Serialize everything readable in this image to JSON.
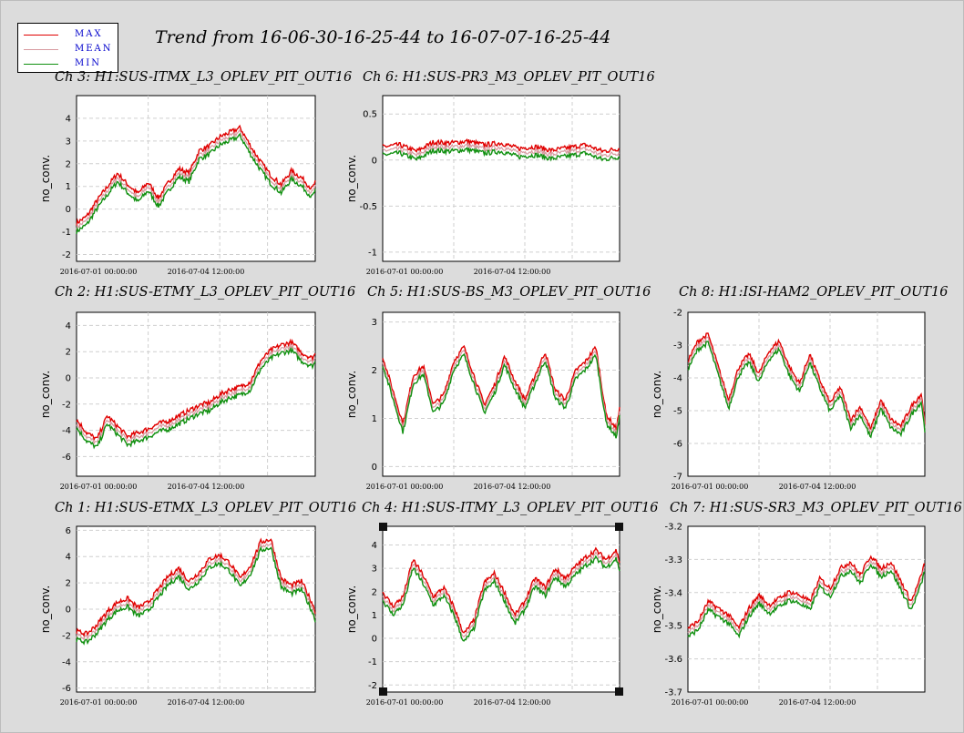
{
  "legend": {
    "items": [
      {
        "label": "MAX",
        "color": "#e00000"
      },
      {
        "label": "MEAN",
        "color": "#d89aa0"
      },
      {
        "label": "MIN",
        "color": "#109010"
      }
    ]
  },
  "header": {
    "title": "Trend from 16-06-30-16-25-44 to 16-07-07-16-25-44"
  },
  "chart_data": [
    {
      "channel": "Ch 3",
      "title": "Ch 3: H1:SUS-ITMX_L3_OPLEV_PIT_OUT16",
      "type": "line",
      "ylabel": "no_conv.",
      "ylim": [
        -2.3,
        5
      ],
      "yticks": [
        -2,
        -1,
        0,
        1,
        2,
        3,
        4
      ],
      "xticks": [
        "2016-07-01 00:00:00",
        "2016-07-04 12:00:00"
      ],
      "xlim": [
        0,
        7
      ],
      "grid": true,
      "series": [
        {
          "name": "MEAN",
          "x": [
            0,
            0.3,
            0.6,
            0.9,
            1.2,
            1.5,
            1.8,
            2.1,
            2.4,
            2.7,
            3.0,
            3.3,
            3.6,
            3.9,
            4.2,
            4.5,
            4.8,
            5.1,
            5.4,
            5.7,
            6.0,
            6.3,
            6.6,
            6.9,
            7.0
          ],
          "values": [
            -0.8,
            -0.5,
            0.2,
            0.8,
            1.4,
            0.9,
            0.5,
            1.0,
            0.3,
            1.0,
            1.6,
            1.4,
            2.4,
            2.6,
            3.0,
            3.2,
            3.4,
            2.6,
            1.9,
            1.3,
            0.9,
            1.5,
            1.2,
            0.7,
            1.0
          ]
        }
      ]
    },
    {
      "channel": "Ch 6",
      "title": "Ch 6: H1:SUS-PR3_M3_OPLEV_PIT_OUT16",
      "type": "line",
      "ylabel": "no_conv.",
      "ylim": [
        -1.1,
        0.7
      ],
      "yticks": [
        0.5,
        0,
        -0.5,
        -1
      ],
      "xticks": [
        "2016-07-01 00:00:00",
        "2016-07-04 12:00:00"
      ],
      "xlim": [
        0,
        7
      ],
      "grid": true,
      "series": [
        {
          "name": "MEAN",
          "x": [
            0,
            0.5,
            1.0,
            1.5,
            2.0,
            2.5,
            3.0,
            3.5,
            4.0,
            4.5,
            5.0,
            5.5,
            6.0,
            6.5,
            7.0
          ],
          "values": [
            0.1,
            0.12,
            0.05,
            0.15,
            0.14,
            0.16,
            0.12,
            0.14,
            0.08,
            0.1,
            0.06,
            0.09,
            0.12,
            0.05,
            0.08
          ]
        }
      ]
    },
    {
      "channel": "Ch 2",
      "title": "Ch 2: H1:SUS-ETMY_L3_OPLEV_PIT_OUT16",
      "type": "line",
      "ylabel": "no_conv.",
      "ylim": [
        -7.5,
        5
      ],
      "yticks": [
        4,
        2,
        0,
        -2,
        -4,
        -6
      ],
      "xticks": [
        "2016-07-01 00:00:00",
        "2016-07-04 12:00:00"
      ],
      "xlim": [
        0,
        7
      ],
      "grid": true,
      "series": [
        {
          "name": "MEAN",
          "x": [
            0,
            0.3,
            0.6,
            0.9,
            1.2,
            1.5,
            1.8,
            2.1,
            2.4,
            2.7,
            3.0,
            3.3,
            3.6,
            3.9,
            4.2,
            4.5,
            4.8,
            5.1,
            5.4,
            5.7,
            6.0,
            6.3,
            6.6,
            6.9,
            7.0
          ],
          "values": [
            -3.5,
            -4.5,
            -5.0,
            -3.2,
            -4.0,
            -4.8,
            -4.5,
            -4.2,
            -3.8,
            -3.6,
            -3.2,
            -2.8,
            -2.4,
            -2.2,
            -1.6,
            -1.2,
            -1.0,
            -0.6,
            1.0,
            1.8,
            2.2,
            2.4,
            1.6,
            1.2,
            1.5
          ]
        }
      ]
    },
    {
      "channel": "Ch 5",
      "title": "Ch 5: H1:SUS-BS_M3_OPLEV_PIT_OUT16",
      "type": "line",
      "ylabel": "no_conv.",
      "ylim": [
        -0.2,
        3.2
      ],
      "yticks": [
        0,
        1,
        2,
        3
      ],
      "xticks": [
        "2016-07-01 00:00:00",
        "2016-07-04 12:00:00"
      ],
      "xlim": [
        0,
        7
      ],
      "grid": true,
      "series": [
        {
          "name": "MEAN",
          "x": [
            0,
            0.3,
            0.6,
            0.9,
            1.2,
            1.5,
            1.8,
            2.1,
            2.4,
            2.7,
            3.0,
            3.3,
            3.6,
            3.9,
            4.2,
            4.5,
            4.8,
            5.1,
            5.4,
            5.7,
            6.0,
            6.3,
            6.6,
            6.9,
            7.0
          ],
          "values": [
            2.2,
            1.5,
            0.8,
            1.8,
            2.0,
            1.2,
            1.4,
            2.1,
            2.4,
            1.8,
            1.2,
            1.6,
            2.2,
            1.7,
            1.3,
            1.8,
            2.3,
            1.5,
            1.3,
            1.9,
            2.1,
            2.4,
            1.0,
            0.7,
            1.1
          ]
        }
      ]
    },
    {
      "channel": "Ch 8",
      "title": "Ch 8: H1:ISI-HAM2_OPLEV_PIT_OUT16",
      "type": "line",
      "ylabel": "no_conv.",
      "ylim": [
        -7,
        -2
      ],
      "yticks": [
        -2,
        -3,
        -4,
        -5,
        -6,
        -7
      ],
      "xticks": [
        "2016-07-01 00:00:00",
        "2016-07-04 12:00:00"
      ],
      "xlim": [
        0,
        7
      ],
      "grid": true,
      "series": [
        {
          "name": "MEAN",
          "x": [
            0,
            0.3,
            0.6,
            0.9,
            1.2,
            1.5,
            1.8,
            2.1,
            2.4,
            2.7,
            3.0,
            3.3,
            3.6,
            3.9,
            4.2,
            4.5,
            4.8,
            5.1,
            5.4,
            5.7,
            6.0,
            6.3,
            6.6,
            6.9,
            7.0
          ],
          "values": [
            -3.6,
            -3.0,
            -2.8,
            -3.8,
            -4.8,
            -3.8,
            -3.4,
            -4.0,
            -3.3,
            -3.0,
            -3.8,
            -4.3,
            -3.4,
            -4.2,
            -4.9,
            -4.4,
            -5.4,
            -5.0,
            -5.7,
            -4.8,
            -5.4,
            -5.6,
            -5.0,
            -4.6,
            -5.5
          ]
        }
      ]
    },
    {
      "channel": "Ch 1",
      "title": "Ch 1: H1:SUS-ETMX_L3_OPLEV_PIT_OUT16",
      "type": "line",
      "ylabel": "no_conv.",
      "ylim": [
        -6.3,
        6.3
      ],
      "yticks": [
        6,
        4,
        2,
        0,
        -2,
        -4,
        -6
      ],
      "xticks": [
        "2016-07-01 00:00:00",
        "2016-07-04 12:00:00"
      ],
      "xlim": [
        0,
        7
      ],
      "grid": true,
      "series": [
        {
          "name": "MEAN",
          "x": [
            0,
            0.3,
            0.6,
            0.9,
            1.2,
            1.5,
            1.8,
            2.1,
            2.4,
            2.7,
            3.0,
            3.3,
            3.6,
            3.9,
            4.2,
            4.5,
            4.8,
            5.1,
            5.4,
            5.7,
            6.0,
            6.3,
            6.6,
            6.9,
            7.0
          ],
          "values": [
            -2.0,
            -2.2,
            -1.5,
            -0.5,
            0.2,
            0.5,
            -0.2,
            0.2,
            1.2,
            2.2,
            2.8,
            1.8,
            2.5,
            3.5,
            3.8,
            3.2,
            2.0,
            3.0,
            4.8,
            5.0,
            2.0,
            1.5,
            1.8,
            0.2,
            -0.5
          ]
        }
      ]
    },
    {
      "channel": "Ch 4",
      "title": "Ch 4: H1:SUS-ITMY_L3_OPLEV_PIT_OUT16",
      "type": "line",
      "ylabel": "no_conv.",
      "ylim": [
        -2.3,
        4.8
      ],
      "yticks": [
        4,
        3,
        2,
        1,
        0,
        -1,
        -2
      ],
      "xticks": [
        "2016-07-01 00:00:00",
        "2016-07-04 12:00:00"
      ],
      "xlim": [
        0,
        7
      ],
      "grid": true,
      "series": [
        {
          "name": "MEAN",
          "x": [
            0,
            0.3,
            0.6,
            0.9,
            1.2,
            1.5,
            1.8,
            2.1,
            2.4,
            2.7,
            3.0,
            3.3,
            3.6,
            3.9,
            4.2,
            4.5,
            4.8,
            5.1,
            5.4,
            5.7,
            6.0,
            6.3,
            6.6,
            6.9,
            7.0
          ],
          "values": [
            1.8,
            1.2,
            1.6,
            3.2,
            2.5,
            1.6,
            2.0,
            1.2,
            0.0,
            0.6,
            2.2,
            2.6,
            1.8,
            0.8,
            1.4,
            2.4,
            2.0,
            2.8,
            2.4,
            2.9,
            3.3,
            3.6,
            3.2,
            3.6,
            3.1
          ]
        }
      ]
    },
    {
      "channel": "Ch 7",
      "title": "Ch 7: H1:SUS-SR3_M3_OPLEV_PIT_OUT16",
      "type": "line",
      "ylabel": "no_conv.",
      "ylim": [
        -3.7,
        -3.2
      ],
      "yticks": [
        -3.2,
        -3.3,
        -3.4,
        -3.5,
        -3.6,
        -3.7
      ],
      "xticks": [
        "2016-07-01 00:00:00",
        "2016-07-04 12:00:00"
      ],
      "xlim": [
        0,
        7
      ],
      "grid": true,
      "series": [
        {
          "name": "MEAN",
          "x": [
            0,
            0.3,
            0.6,
            0.9,
            1.2,
            1.5,
            1.8,
            2.1,
            2.4,
            2.7,
            3.0,
            3.3,
            3.6,
            3.9,
            4.2,
            4.5,
            4.8,
            5.1,
            5.4,
            5.7,
            6.0,
            6.3,
            6.6,
            6.9,
            7.0
          ],
          "values": [
            -3.52,
            -3.5,
            -3.44,
            -3.46,
            -3.48,
            -3.52,
            -3.46,
            -3.42,
            -3.45,
            -3.43,
            -3.41,
            -3.42,
            -3.44,
            -3.37,
            -3.4,
            -3.34,
            -3.32,
            -3.36,
            -3.3,
            -3.34,
            -3.32,
            -3.38,
            -3.44,
            -3.36,
            -3.32
          ]
        }
      ]
    }
  ]
}
